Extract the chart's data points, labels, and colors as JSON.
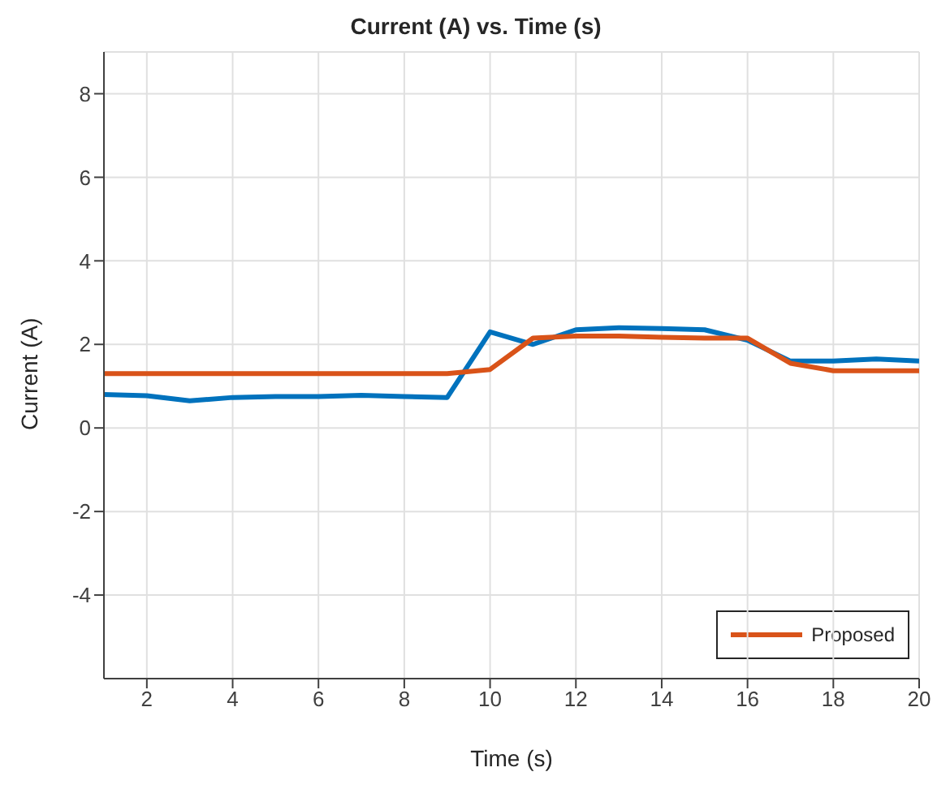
{
  "chart_data": {
    "type": "line",
    "title": "Current (A) vs. Time (s)",
    "xlabel": "Time (s)",
    "ylabel": "Current (A)",
    "x": [
      1,
      2,
      3,
      4,
      5,
      6,
      7,
      8,
      9,
      10,
      11,
      12,
      13,
      14,
      15,
      16,
      17,
      18,
      19,
      20
    ],
    "series": [
      {
        "color": "#0072bd",
        "values": [
          0.8,
          0.77,
          0.65,
          0.73,
          0.75,
          0.75,
          0.78,
          0.75,
          0.73,
          2.3,
          2.0,
          2.35,
          2.4,
          2.38,
          2.35,
          2.1,
          1.6,
          1.6,
          1.65,
          1.6
        ]
      },
      {
        "name": "Proposed",
        "color": "#d95319",
        "values": [
          1.3,
          1.3,
          1.3,
          1.3,
          1.3,
          1.3,
          1.3,
          1.3,
          1.3,
          1.4,
          2.15,
          2.2,
          2.2,
          2.17,
          2.15,
          2.15,
          1.55,
          1.37,
          1.37,
          1.37
        ]
      }
    ],
    "xlim": [
      1,
      20
    ],
    "xticks": [
      2,
      4,
      6,
      8,
      10,
      12,
      14,
      16,
      18,
      20
    ],
    "ylim": [
      -6,
      9
    ],
    "yticks": [
      -4,
      -2,
      0,
      2,
      4,
      6,
      8
    ],
    "grid": true,
    "legend": "bottom right",
    "line_style": "solid",
    "marker": "none"
  }
}
